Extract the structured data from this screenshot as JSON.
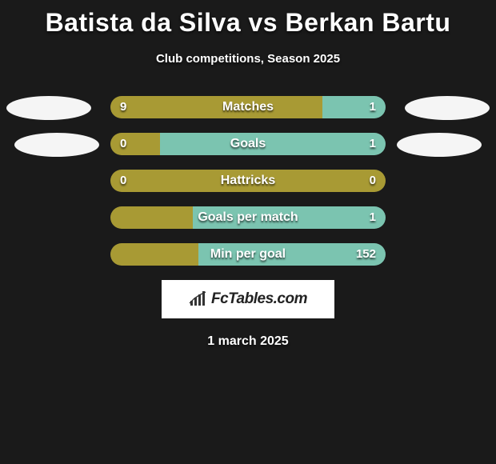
{
  "title": "Batista da Silva vs Berkan Bartu",
  "subtitle": "Club competitions, Season 2025",
  "date": "1 march 2025",
  "logo_text": "FcTables.com",
  "colors": {
    "background": "#1a1a1a",
    "left_bar": "#a89a34",
    "right_bar": "#7bc4b0",
    "text": "#ffffff",
    "oval": "#f5f5f5"
  },
  "bar_track_width": 344,
  "rows": [
    {
      "label": "Matches",
      "left_val": "9",
      "right_val": "1",
      "left_pct": 77,
      "right_pct": 23
    },
    {
      "label": "Goals",
      "left_val": "0",
      "right_val": "1",
      "left_pct": 18,
      "right_pct": 82
    },
    {
      "label": "Hattricks",
      "left_val": "0",
      "right_val": "0",
      "left_pct": 100,
      "right_pct": 0
    },
    {
      "label": "Goals per match",
      "left_val": "",
      "right_val": "1",
      "left_pct": 30,
      "right_pct": 70
    },
    {
      "label": "Min per goal",
      "left_val": "",
      "right_val": "152",
      "left_pct": 32,
      "right_pct": 68
    }
  ]
}
